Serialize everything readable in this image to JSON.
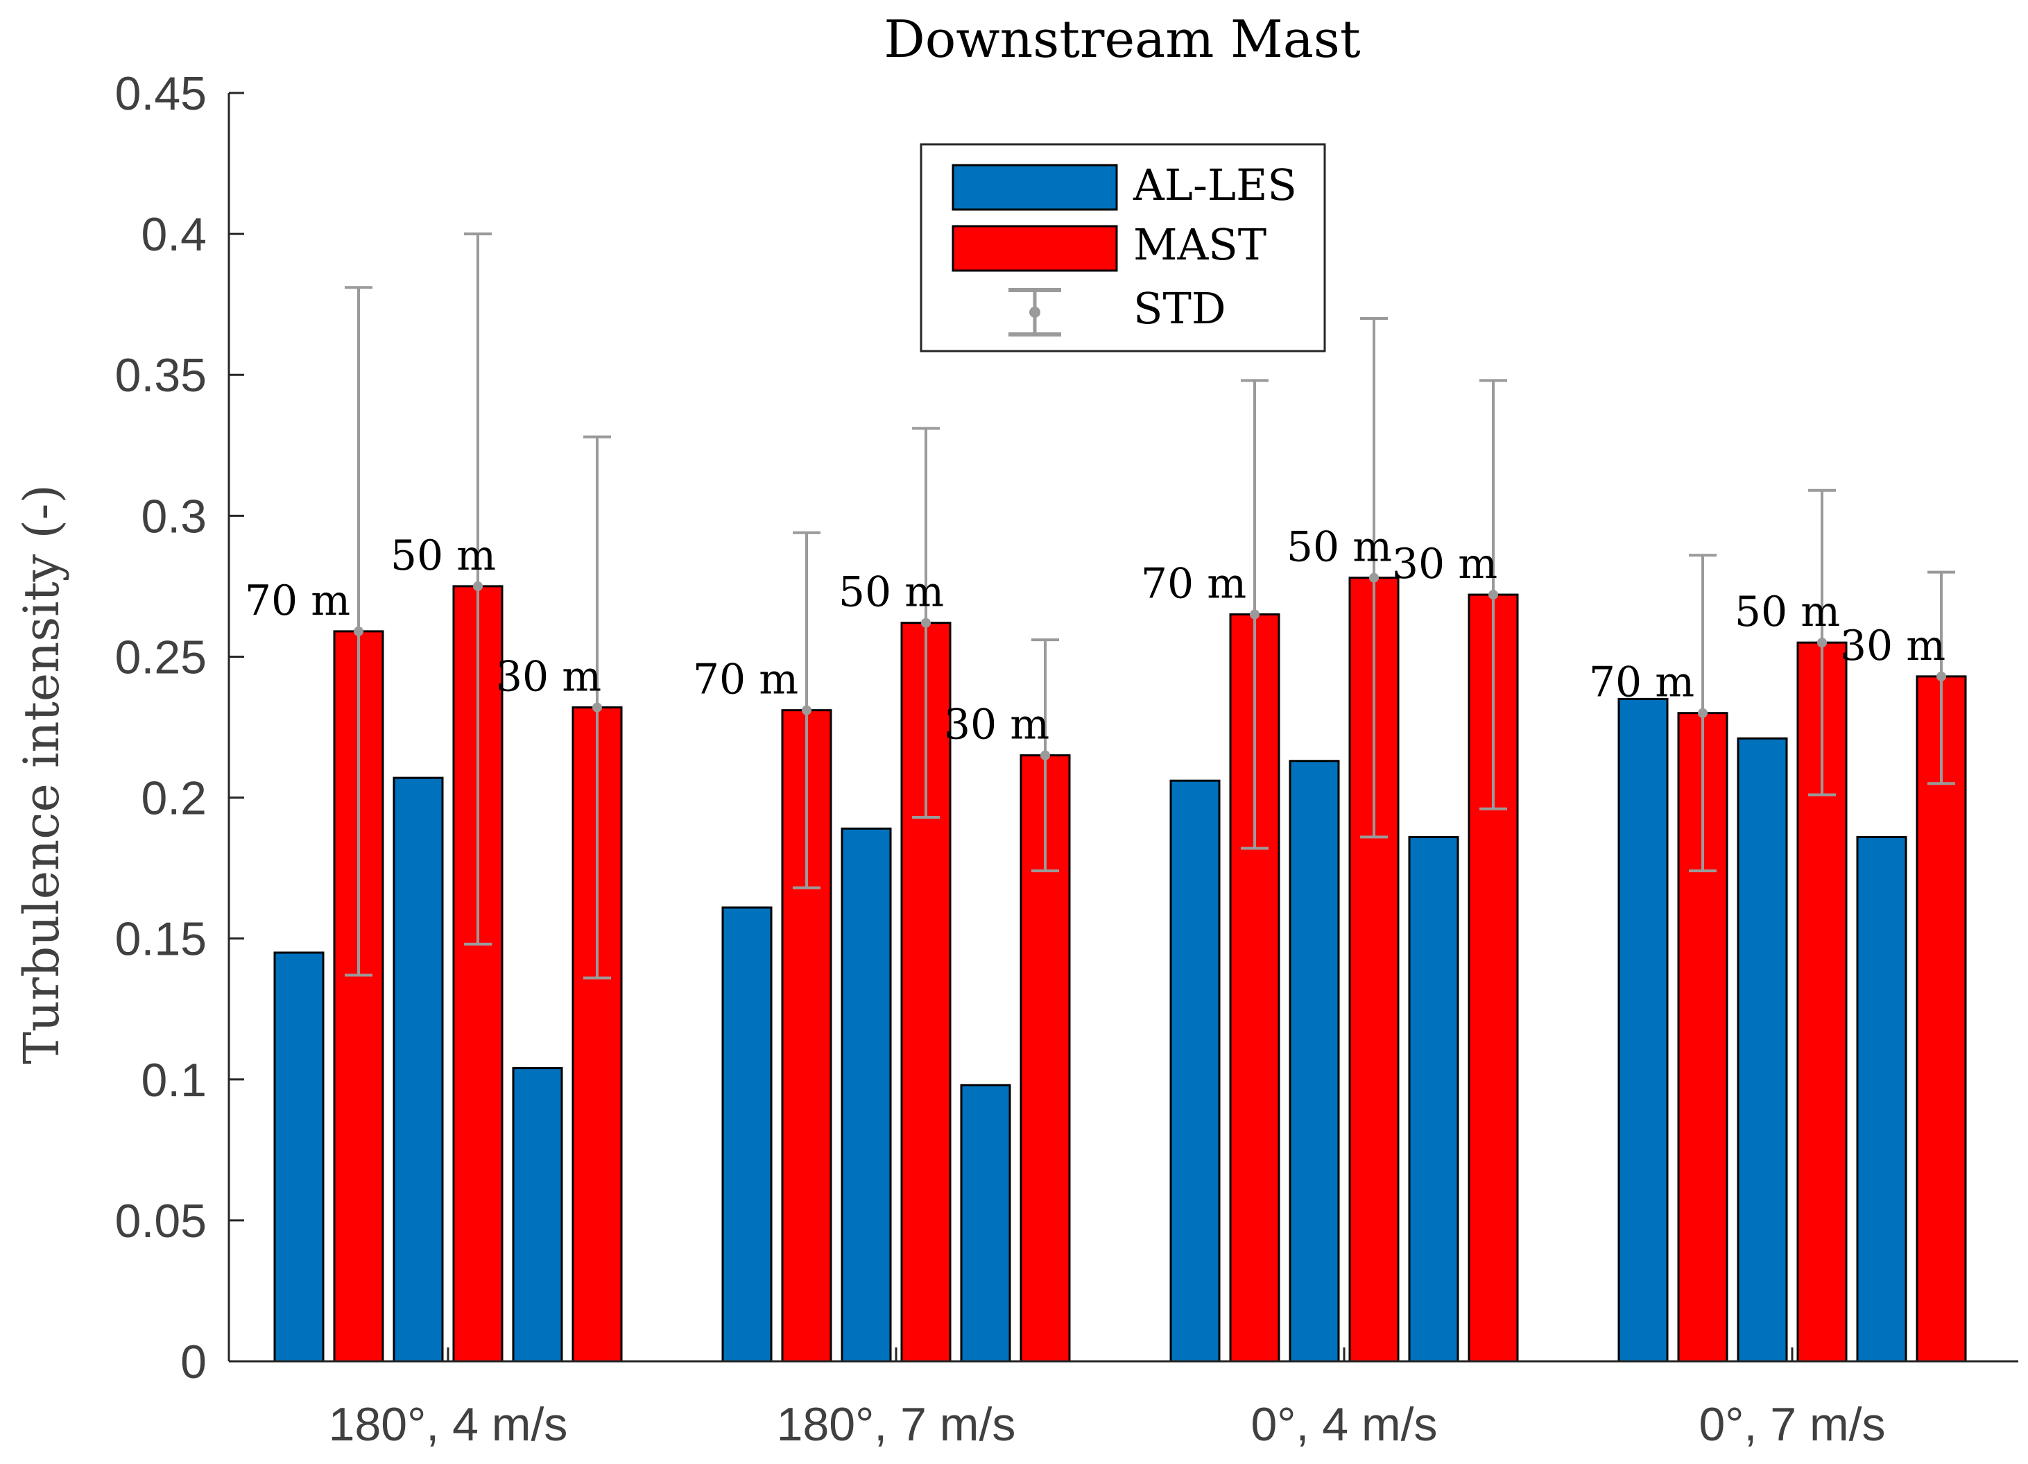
{
  "chart_data": {
    "type": "bar",
    "title": "Downstream Mast",
    "xlabel": "",
    "ylabel": "Turbulence intensity (-)",
    "ylim": [
      0,
      0.45
    ],
    "yticks": [
      {
        "value": 0,
        "label": "0"
      },
      {
        "value": 0.05,
        "label": "0.05"
      },
      {
        "value": 0.1,
        "label": "0.1"
      },
      {
        "value": 0.15,
        "label": "0.15"
      },
      {
        "value": 0.2,
        "label": "0.2"
      },
      {
        "value": 0.25,
        "label": "0.25"
      },
      {
        "value": 0.3,
        "label": "0.3"
      },
      {
        "value": 0.35,
        "label": "0.35"
      },
      {
        "value": 0.4,
        "label": "0.4"
      },
      {
        "value": 0.45,
        "label": "0.45"
      }
    ],
    "categories": [
      "180°, 4 m/s",
      "180°, 7 m/s",
      "0°, 4 m/s",
      "0°, 7 m/s"
    ],
    "heights": [
      "70 m",
      "50 m",
      "30 m"
    ],
    "series": [
      {
        "name": "AL-LES",
        "color": "#0072bd",
        "values": [
          [
            0.145,
            0.207,
            0.104
          ],
          [
            0.161,
            0.189,
            0.098
          ],
          [
            0.206,
            0.213,
            0.186
          ],
          [
            0.235,
            0.221,
            0.186
          ]
        ]
      },
      {
        "name": "MAST",
        "color": "#ff0000",
        "values": [
          [
            0.259,
            0.275,
            0.232
          ],
          [
            0.231,
            0.262,
            0.215
          ],
          [
            0.265,
            0.278,
            0.272
          ],
          [
            0.23,
            0.255,
            0.243
          ]
        ],
        "error_low": [
          [
            0.137,
            0.148,
            0.136
          ],
          [
            0.168,
            0.193,
            0.174
          ],
          [
            0.182,
            0.186,
            0.196
          ],
          [
            0.174,
            0.201,
            0.205
          ]
        ],
        "error_high": [
          [
            0.381,
            0.4,
            0.328
          ],
          [
            0.294,
            0.331,
            0.256
          ],
          [
            0.348,
            0.37,
            0.348
          ],
          [
            0.286,
            0.309,
            0.28
          ]
        ]
      }
    ],
    "error_series_name": "STD",
    "error_color": "#9a9a9a",
    "legend_position": "top-center",
    "grid": false
  }
}
